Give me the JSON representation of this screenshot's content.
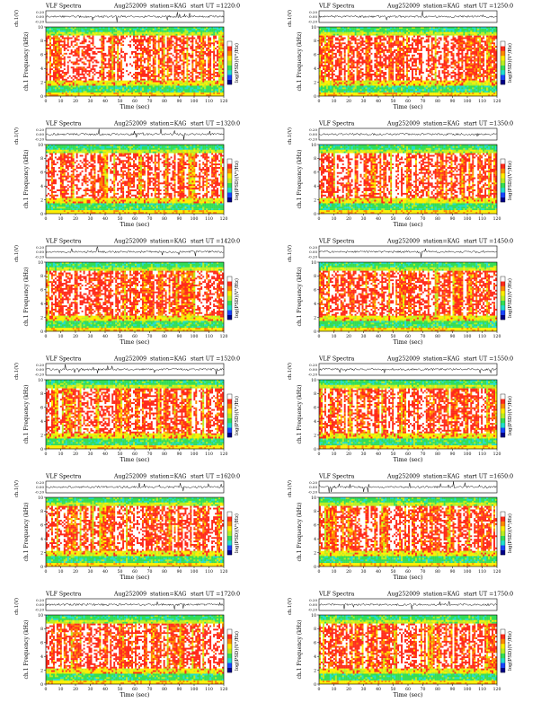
{
  "colors": {
    "white": "#ffffff",
    "red": "#ff2a1a",
    "orange": "#ff8800",
    "yellow": "#ffee00",
    "yellowgreen": "#b8ee20",
    "green": "#33dd55",
    "cyan": "#22ddcc",
    "blue": "#1844ff",
    "navy": "#000088",
    "trace": "#000000"
  },
  "chart_data": [
    {
      "type": "heatmap",
      "title_left": "VLF Spectra",
      "date": "Aug252009",
      "station": "station=KAG",
      "start_ut": "start UT =1220:0",
      "trace_ylabel": "ch.1(V)",
      "trace_ticks": [
        "0.20",
        "0.00",
        "-0.20"
      ],
      "ylabel": "ch.1 Frequency (kHz)",
      "y_ticks": [
        "0",
        "2",
        "4",
        "6",
        "8",
        "10"
      ],
      "ylim": [
        0,
        10
      ],
      "xlabel": "Time (sec)",
      "x_ticks": [
        "0",
        "10",
        "20",
        "30",
        "40",
        "50",
        "60",
        "70",
        "80",
        "90",
        "100",
        "110",
        "120"
      ],
      "xlim": [
        0,
        120
      ],
      "colorbar_label": "log(PSD)(V²/Hz)"
    },
    {
      "type": "heatmap",
      "title_left": "VLF Spectra",
      "date": "Aug252009",
      "station": "station=KAG",
      "start_ut": "start UT =1250:0",
      "trace_ylabel": "ch.1(V)",
      "trace_ticks": [
        "0.20",
        "0.00",
        "-0.20"
      ],
      "ylabel": "ch.1 Frequency (kHz)",
      "y_ticks": [
        "0",
        "2",
        "4",
        "6",
        "8",
        "10"
      ],
      "ylim": [
        0,
        10
      ],
      "xlabel": "Time (sec)",
      "x_ticks": [
        "0",
        "10",
        "20",
        "30",
        "40",
        "50",
        "60",
        "70",
        "80",
        "90",
        "100",
        "110",
        "120"
      ],
      "xlim": [
        0,
        120
      ],
      "colorbar_label": "log(PSD)(V²/Hz)"
    },
    {
      "type": "heatmap",
      "title_left": "VLF Spectra",
      "date": "Aug252009",
      "station": "station=KAG",
      "start_ut": "start UT =1320:0",
      "trace_ylabel": "ch.1(V)",
      "trace_ticks": [
        "0.20",
        "0.00",
        "-0.20"
      ],
      "ylabel": "ch.1 Frequency (kHz)",
      "y_ticks": [
        "0",
        "2",
        "4",
        "6",
        "8",
        "10"
      ],
      "ylim": [
        0,
        10
      ],
      "xlabel": "Time (sec)",
      "x_ticks": [
        "0",
        "10",
        "20",
        "30",
        "40",
        "50",
        "60",
        "70",
        "80",
        "90",
        "100",
        "110",
        "120"
      ],
      "xlim": [
        0,
        120
      ],
      "colorbar_label": "log(PSD)(V²/Hz)"
    },
    {
      "type": "heatmap",
      "title_left": "VLF Spectra",
      "date": "Aug252009",
      "station": "station=KAG",
      "start_ut": "start UT =1350:0",
      "trace_ylabel": "ch.1(V)",
      "trace_ticks": [
        "0.20",
        "0.00",
        "-0.20"
      ],
      "ylabel": "ch.1 Frequency (kHz)",
      "y_ticks": [
        "0",
        "2",
        "4",
        "6",
        "8",
        "10"
      ],
      "ylim": [
        0,
        10
      ],
      "xlabel": "Time (sec)",
      "x_ticks": [
        "0",
        "10",
        "20",
        "30",
        "40",
        "50",
        "60",
        "70",
        "80",
        "90",
        "100",
        "110",
        "120"
      ],
      "xlim": [
        0,
        120
      ],
      "colorbar_label": "log(PSD)(V²/Hz)"
    },
    {
      "type": "heatmap",
      "title_left": "VLF Spectra",
      "date": "Aug252009",
      "station": "station=KAG",
      "start_ut": "start UT =1420:0",
      "trace_ylabel": "ch.1(V)",
      "trace_ticks": [
        "0.20",
        "0.00",
        "-0.20"
      ],
      "ylabel": "ch.1 Frequency (kHz)",
      "y_ticks": [
        "0",
        "2",
        "4",
        "6",
        "8",
        "10"
      ],
      "ylim": [
        0,
        10
      ],
      "xlabel": "Time (sec)",
      "x_ticks": [
        "0",
        "10",
        "20",
        "30",
        "40",
        "50",
        "60",
        "70",
        "80",
        "90",
        "100",
        "110",
        "120"
      ],
      "xlim": [
        0,
        120
      ],
      "colorbar_label": "log(PSD)(V²/Hz)"
    },
    {
      "type": "heatmap",
      "title_left": "VLF Spectra",
      "date": "Aug252009",
      "station": "station=KAG",
      "start_ut": "start UT =1450:0",
      "trace_ylabel": "ch.1(V)",
      "trace_ticks": [
        "0.20",
        "0.00",
        "-0.20"
      ],
      "ylabel": "ch.1 Frequency (kHz)",
      "y_ticks": [
        "0",
        "2",
        "4",
        "6",
        "8",
        "10"
      ],
      "ylim": [
        0,
        10
      ],
      "xlabel": "Time (sec)",
      "x_ticks": [
        "0",
        "10",
        "20",
        "30",
        "40",
        "50",
        "60",
        "70",
        "80",
        "90",
        "100",
        "110",
        "120"
      ],
      "xlim": [
        0,
        120
      ],
      "colorbar_label": "log(PSD)(V²/Hz)"
    },
    {
      "type": "heatmap",
      "title_left": "VLF Spectra",
      "date": "Aug252009",
      "station": "station=KAG",
      "start_ut": "start UT =1520:0",
      "trace_ylabel": "ch.1(V)",
      "trace_ticks": [
        "0.20",
        "0.00",
        "-0.20"
      ],
      "ylabel": "ch.1 Frequency (kHz)",
      "y_ticks": [
        "0",
        "2",
        "4",
        "6",
        "8",
        "10"
      ],
      "ylim": [
        0,
        10
      ],
      "xlabel": "Time (sec)",
      "x_ticks": [
        "0",
        "10",
        "20",
        "30",
        "40",
        "50",
        "60",
        "70",
        "80",
        "90",
        "100",
        "110",
        "120"
      ],
      "xlim": [
        0,
        120
      ],
      "colorbar_label": "log(PSD)(V²/Hz)"
    },
    {
      "type": "heatmap",
      "title_left": "VLF Spectra",
      "date": "Aug252009",
      "station": "station=KAG",
      "start_ut": "start UT =1550:0",
      "trace_ylabel": "ch.1(V)",
      "trace_ticks": [
        "0.20",
        "0.00",
        "-0.20"
      ],
      "ylabel": "ch.1 Frequency (kHz)",
      "y_ticks": [
        "0",
        "2",
        "4",
        "6",
        "8",
        "10"
      ],
      "ylim": [
        0,
        10
      ],
      "xlabel": "Time (sec)",
      "x_ticks": [
        "0",
        "10",
        "20",
        "30",
        "40",
        "50",
        "60",
        "70",
        "80",
        "90",
        "100",
        "110",
        "120"
      ],
      "xlim": [
        0,
        120
      ],
      "colorbar_label": "log(PSD)(V²/Hz)"
    },
    {
      "type": "heatmap",
      "title_left": "VLF Spectra",
      "date": "Aug252009",
      "station": "station=KAG",
      "start_ut": "start UT =1620:0",
      "trace_ylabel": "ch.1(V)",
      "trace_ticks": [
        "0.20",
        "0.00",
        "-0.20"
      ],
      "ylabel": "ch.1 Frequency (kHz)",
      "y_ticks": [
        "0",
        "2",
        "4",
        "6",
        "8",
        "10"
      ],
      "ylim": [
        0,
        10
      ],
      "xlabel": "Time (sec)",
      "x_ticks": [
        "0",
        "10",
        "20",
        "30",
        "40",
        "50",
        "60",
        "70",
        "80",
        "90",
        "100",
        "110",
        "120"
      ],
      "xlim": [
        0,
        120
      ],
      "colorbar_label": "log(PSD)(V²/Hz)"
    },
    {
      "type": "heatmap",
      "title_left": "VLF Spectra",
      "date": "Aug252009",
      "station": "station=KAG",
      "start_ut": "start UT =1650:0",
      "trace_ylabel": "ch.1(V)",
      "trace_ticks": [
        "0.20",
        "0.00",
        "-0.20"
      ],
      "ylabel": "ch.1 Frequency (kHz)",
      "y_ticks": [
        "0",
        "2",
        "4",
        "6",
        "8",
        "10"
      ],
      "ylim": [
        0,
        10
      ],
      "xlabel": "Time (sec)",
      "x_ticks": [
        "0",
        "10",
        "20",
        "30",
        "40",
        "50",
        "60",
        "70",
        "80",
        "90",
        "100",
        "110",
        "120"
      ],
      "xlim": [
        0,
        120
      ],
      "colorbar_label": "log(PSD)(V²/Hz)"
    },
    {
      "type": "heatmap",
      "title_left": "VLF Spectra",
      "date": "Aug252009",
      "station": "station=KAG",
      "start_ut": "start UT =1720:0",
      "trace_ylabel": "ch.1(V)",
      "trace_ticks": [
        "0.20",
        "0.00",
        "-0.20"
      ],
      "ylabel": "ch.1 Frequency (kHz)",
      "y_ticks": [
        "0",
        "2",
        "4",
        "6",
        "8",
        "10"
      ],
      "ylim": [
        0,
        10
      ],
      "xlabel": "Time (sec)",
      "x_ticks": [
        "0",
        "10",
        "20",
        "30",
        "40",
        "50",
        "60",
        "70",
        "80",
        "90",
        "100",
        "110",
        "120"
      ],
      "xlim": [
        0,
        120
      ],
      "colorbar_label": "log(PSD)(V²/Hz)"
    },
    {
      "type": "heatmap",
      "title_left": "VLF Spectra",
      "date": "Aug252009",
      "station": "station=KAG",
      "start_ut": "start UT =1750:0",
      "trace_ylabel": "ch.1(V)",
      "trace_ticks": [
        "0.20",
        "0.00",
        "-0.20"
      ],
      "ylabel": "ch.1 Frequency (kHz)",
      "y_ticks": [
        "0",
        "2",
        "4",
        "6",
        "8",
        "10"
      ],
      "ylim": [
        0,
        10
      ],
      "xlabel": "Time (sec)",
      "x_ticks": [
        "0",
        "10",
        "20",
        "30",
        "40",
        "50",
        "60",
        "70",
        "80",
        "90",
        "100",
        "110",
        "120"
      ],
      "xlim": [
        0,
        120
      ],
      "colorbar_label": "log(PSD)(V²/Hz)"
    }
  ]
}
